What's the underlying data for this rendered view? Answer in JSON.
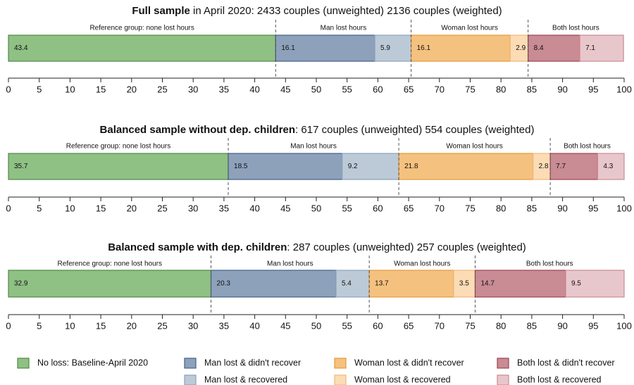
{
  "chart_data": {
    "type": "stacked-bar",
    "xlim": [
      0,
      100
    ],
    "xticks": [
      0,
      5,
      10,
      15,
      20,
      25,
      30,
      35,
      40,
      45,
      50,
      55,
      60,
      65,
      70,
      75,
      80,
      85,
      90,
      95,
      100
    ],
    "series": [
      {
        "name": "No loss: Baseline-April 2020",
        "color": "#8fc084",
        "stroke": "#4f8a46"
      },
      {
        "name": "Man lost & didn't recover",
        "color": "#8ea1bb",
        "stroke": "#41618a"
      },
      {
        "name": "Man lost & recovered",
        "color": "#bccad7",
        "stroke": "#8ea1bb"
      },
      {
        "name": "Woman lost & didn't recover",
        "color": "#f5c17f",
        "stroke": "#e39b3c"
      },
      {
        "name": "Woman lost & recovered",
        "color": "#fbdcb5",
        "stroke": "#efb77a"
      },
      {
        "name": "Both lost & didn't recover",
        "color": "#c98b94",
        "stroke": "#9c4451"
      },
      {
        "name": "Both lost & recovered",
        "color": "#e8c7cc",
        "stroke": "#c98b94"
      }
    ],
    "panels": [
      {
        "title_bold": "Full sample",
        "title_rest": " in April 2020: 2433 couples (unweighted) 2136 couples (weighted)",
        "values": [
          43.4,
          16.1,
          5.9,
          16.1,
          2.9,
          8.4,
          7.1
        ],
        "group_labels": [
          "Reference group: none lost hours",
          "Man lost hours",
          "Woman lost hours",
          "Both lost hours"
        ]
      },
      {
        "title_bold": "Balanced sample without dep. children",
        "title_rest": ": 617 couples (unweighted) 554 couples (weighted)",
        "values": [
          35.7,
          18.5,
          9.2,
          21.8,
          2.8,
          7.7,
          4.3
        ],
        "group_labels": [
          "Reference group: none lost hours",
          "Man lost hours",
          "Woman lost hours",
          "Both lost hours"
        ]
      },
      {
        "title_bold": "Balanced sample with dep. children",
        "title_rest": ": 287 couples (unweighted) 257 couples (weighted)",
        "values": [
          32.9,
          20.3,
          5.4,
          13.7,
          3.5,
          14.7,
          9.5
        ],
        "group_labels": [
          "Reference group: none lost hours",
          "Man lost hours",
          "Woman lost hours",
          "Both lost hours"
        ]
      }
    ]
  }
}
